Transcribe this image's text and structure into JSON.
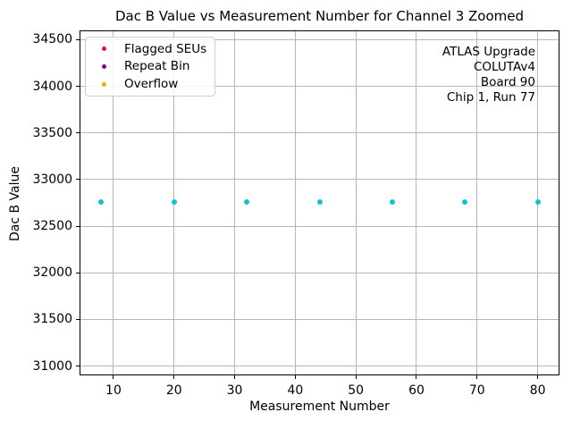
{
  "chart_data": {
    "type": "scatter",
    "title": "Dac B Value vs Measurement Number for Channel 3 Zoomed",
    "xlabel": "Measurement Number",
    "ylabel": "Dac B Value",
    "xlim": [
      4.4,
      83.6
    ],
    "ylim": [
      30900,
      34600
    ],
    "xticks": [
      10,
      20,
      30,
      40,
      50,
      60,
      70,
      80
    ],
    "yticks": [
      31000,
      31500,
      32000,
      32500,
      33000,
      33500,
      34000,
      34500
    ],
    "grid": true,
    "series": [
      {
        "name": "Dac B Value",
        "marker_color": "#17becf",
        "x": [
          8,
          20,
          32,
          44,
          56,
          68,
          80
        ],
        "y": [
          32760,
          32760,
          32760,
          32760,
          32760,
          32760,
          32760
        ]
      }
    ],
    "legend": {
      "position": "upper left",
      "entries": [
        {
          "label": "Flagged SEUs",
          "color": "#dc143c"
        },
        {
          "label": "Repeat Bin",
          "color": "#800080"
        },
        {
          "label": "Overflow",
          "color": "#ffa500"
        }
      ]
    },
    "annotation": {
      "align": "right",
      "lines": [
        "ATLAS Upgrade",
        "COLUTAv4",
        "Board 90",
        "Chip 1, Run 77"
      ]
    }
  }
}
